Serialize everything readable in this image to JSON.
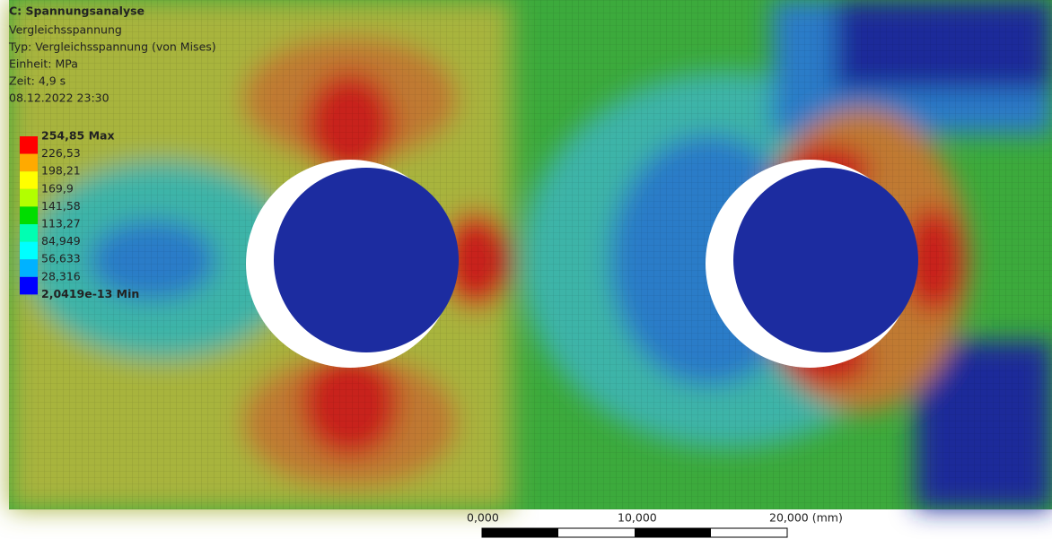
{
  "header": {
    "title": "C: Spannungsanalyse",
    "lines": [
      "Vergleichsspannung",
      "Typ: Vergleichsspannung (von Mises)",
      "Einheit: MPa",
      "Zeit: 4,9 s",
      "08.12.2022 23:30"
    ]
  },
  "legend": {
    "labels": [
      "254,85 Max",
      "226,53",
      "198,21",
      "169,9",
      "141,58",
      "113,27",
      "84,949",
      "56,633",
      "28,316",
      "2,0419e-13 Min"
    ],
    "colors": [
      "#ff0000",
      "#ffaa00",
      "#ffff00",
      "#b2ff00",
      "#00dd00",
      "#00ffb2",
      "#00ffff",
      "#00b2ff",
      "#0000ff"
    ]
  },
  "scale_bar": {
    "labels": [
      "0,000",
      "10,000",
      "20,000 (mm)"
    ]
  }
}
